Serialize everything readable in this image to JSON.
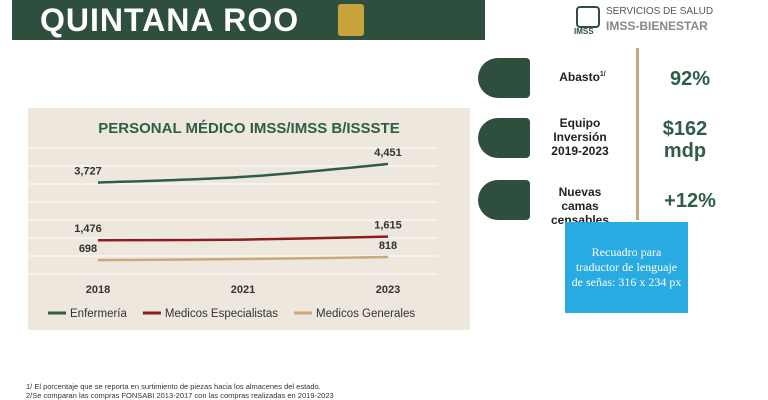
{
  "header": {
    "title": "QUINTANA ROO"
  },
  "logo": {
    "mark": "IMSS",
    "line1": "SERVICIOS DE SALUD",
    "line2": "IMSS-BIENESTAR"
  },
  "chart_data": {
    "type": "line",
    "title": "PERSONAL MÉDICO IMSS/IMSS B/ISSSTE",
    "categories": [
      "2018",
      "2021",
      "2023"
    ],
    "series": [
      {
        "name": "Enfermería",
        "color": "#2f5d46",
        "values": [
          3727,
          3950,
          4451
        ],
        "value_labels": [
          "3,727",
          null,
          "4,451"
        ]
      },
      {
        "name": "Medicos Especialistas",
        "color": "#8e1c1c",
        "values": [
          1476,
          1500,
          1615
        ],
        "value_labels": [
          "1,476",
          null,
          "1,615"
        ]
      },
      {
        "name": "Medicos Generales",
        "color": "#c9a97a",
        "values": [
          698,
          740,
          818
        ],
        "value_labels": [
          "698",
          null,
          "818"
        ]
      }
    ],
    "ylim": [
      0,
      5000
    ]
  },
  "indicators": [
    {
      "label": "Abasto",
      "note": "1/",
      "value": "92%"
    },
    {
      "label": "Equipo Inversión 2019-2023",
      "value": "$162 mdp"
    },
    {
      "label": "Nuevas camas censables",
      "value": "+12%"
    }
  ],
  "sign_box": {
    "text": "Recuadro para traductor de lenguaje de señas: 316 x 234 px"
  },
  "footnotes": [
    "1/ El porcentaje que se reporta en surtimiento de piezas hacia los almacenes del estado.",
    "2/Se comparan las compras FONSABI 2013-2017 con las compras realizadas en 2019-2023"
  ]
}
